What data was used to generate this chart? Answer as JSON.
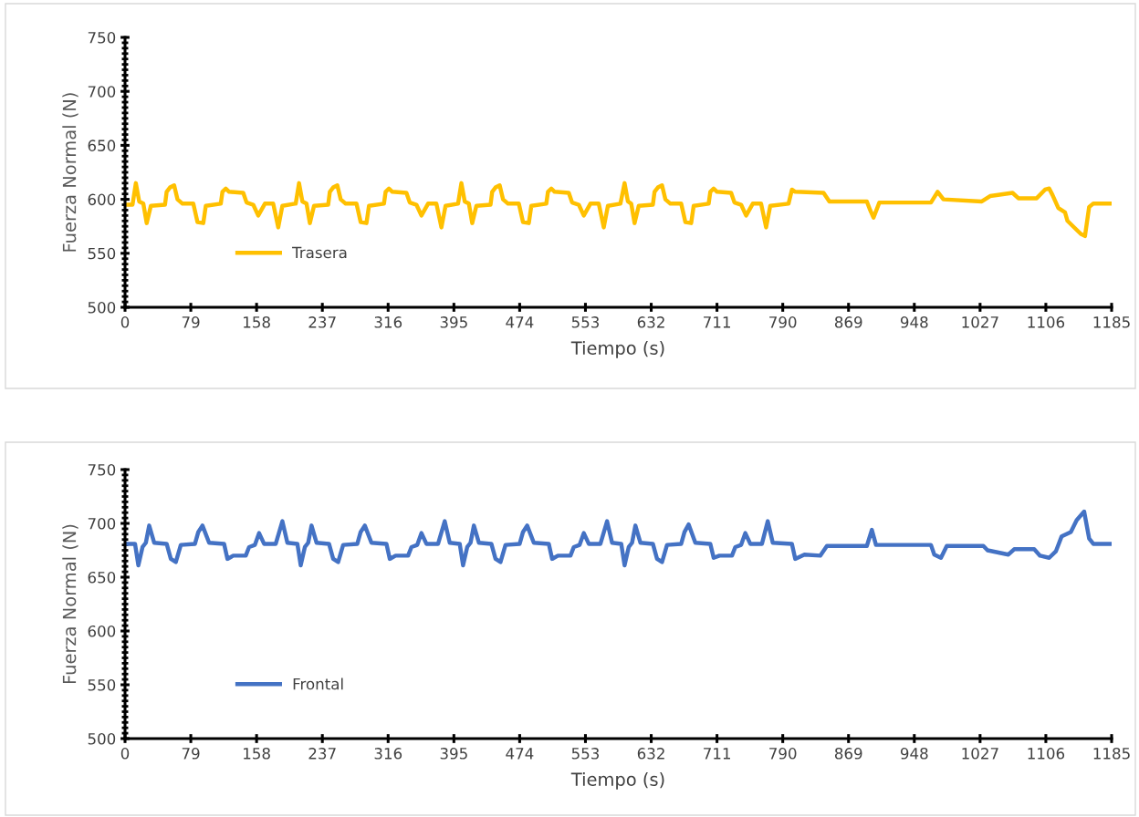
{
  "chart_data": [
    {
      "type": "line",
      "xlabel": "Tiempo (s)",
      "ylabel": "Fuerza Normal (N)",
      "xlim": [
        0,
        1185
      ],
      "xticks": [
        0,
        79,
        158,
        237,
        316,
        395,
        474,
        553,
        632,
        711,
        790,
        869,
        948,
        1027,
        1106,
        1185
      ],
      "ylim": [
        500,
        750
      ],
      "yticks": [
        500,
        550,
        600,
        650,
        700,
        750
      ],
      "grid": false,
      "legend": "bottom left",
      "marker": "none",
      "line_style": "solid",
      "series": [
        {
          "name": "Trasera",
          "color": "#ffc000",
          "x": [
            0,
            9,
            13,
            17,
            22,
            26,
            31,
            48,
            50,
            54,
            59,
            63,
            69,
            82,
            87,
            94,
            97,
            115,
            117,
            121,
            125,
            142,
            146,
            154,
            160,
            168,
            178,
            184,
            189,
            204,
            205,
            209,
            213,
            218,
            222,
            227,
            244,
            246,
            250,
            255,
            259,
            265,
            278,
            283,
            290,
            293,
            311,
            313,
            317,
            321,
            338,
            342,
            350,
            356,
            364,
            374,
            380,
            385,
            400,
            404,
            408,
            413,
            417,
            422,
            439,
            441,
            445,
            450,
            454,
            460,
            473,
            478,
            485,
            488,
            506,
            508,
            512,
            516,
            533,
            537,
            545,
            551,
            559,
            569,
            575,
            580,
            595,
            600,
            604,
            608,
            612,
            617,
            634,
            636,
            640,
            645,
            649,
            655,
            668,
            673,
            680,
            683,
            701,
            703,
            707,
            711,
            728,
            732,
            740,
            746,
            754,
            764,
            770,
            775,
            797,
            801,
            805,
            839,
            846,
            891,
            895,
            899,
            906,
            968,
            976,
            983,
            1029,
            1039,
            1066,
            1073,
            1095,
            1105,
            1110,
            1114,
            1121,
            1129,
            1132,
            1148,
            1153,
            1158,
            1163,
            1185
          ],
          "values": [
            595,
            595,
            615,
            598,
            596,
            578,
            594,
            595,
            607,
            611,
            613,
            600,
            596,
            596,
            579,
            578,
            594,
            596,
            607,
            610,
            607,
            606,
            597,
            595,
            585,
            596,
            596,
            574,
            594,
            596,
            596,
            615,
            598,
            596,
            578,
            594,
            595,
            607,
            611,
            613,
            600,
            596,
            596,
            579,
            578,
            594,
            596,
            607,
            610,
            607,
            606,
            597,
            595,
            585,
            596,
            596,
            574,
            594,
            596,
            615,
            598,
            596,
            578,
            594,
            595,
            607,
            611,
            613,
            600,
            596,
            596,
            579,
            578,
            594,
            596,
            607,
            610,
            607,
            606,
            597,
            595,
            585,
            596,
            596,
            574,
            594,
            596,
            615,
            598,
            596,
            578,
            594,
            595,
            607,
            611,
            613,
            600,
            596,
            596,
            579,
            578,
            594,
            596,
            607,
            610,
            607,
            606,
            597,
            595,
            585,
            596,
            596,
            574,
            594,
            596,
            609,
            607,
            606,
            598,
            598,
            590,
            583,
            597,
            597,
            607,
            600,
            598,
            603,
            606,
            601,
            601,
            609,
            610,
            604,
            592,
            588,
            580,
            568,
            566,
            593,
            596,
            596
          ]
        }
      ]
    },
    {
      "type": "line",
      "xlabel": "Tiempo (s)",
      "ylabel": "Fuerza Normal (N)",
      "xlim": [
        0,
        1185
      ],
      "xticks": [
        0,
        79,
        158,
        237,
        316,
        395,
        474,
        553,
        632,
        711,
        790,
        869,
        948,
        1027,
        1106,
        1185
      ],
      "ylim": [
        500,
        750
      ],
      "yticks": [
        500,
        550,
        600,
        650,
        700,
        750
      ],
      "grid": false,
      "legend": "bottom left",
      "marker": "none",
      "line_style": "solid",
      "series": [
        {
          "name": "Frontal",
          "color": "#4472c4",
          "x": [
            0,
            12,
            16,
            21,
            25,
            29,
            35,
            50,
            55,
            61,
            67,
            84,
            88,
            93,
            101,
            119,
            123,
            130,
            145,
            149,
            156,
            161,
            167,
            181,
            189,
            195,
            207,
            211,
            216,
            220,
            224,
            230,
            245,
            250,
            256,
            262,
            279,
            283,
            288,
            296,
            314,
            318,
            325,
            340,
            344,
            351,
            356,
            362,
            376,
            384,
            390,
            402,
            406,
            411,
            415,
            419,
            425,
            440,
            445,
            451,
            457,
            474,
            478,
            483,
            491,
            509,
            513,
            520,
            535,
            539,
            546,
            551,
            557,
            571,
            579,
            585,
            596,
            600,
            605,
            609,
            613,
            619,
            634,
            639,
            645,
            651,
            668,
            672,
            677,
            685,
            703,
            707,
            714,
            729,
            733,
            740,
            745,
            751,
            765,
            772,
            778,
            801,
            805,
            816,
            835,
            843,
            891,
            897,
            902,
            968,
            972,
            980,
            987,
            1031,
            1036,
            1061,
            1068,
            1092,
            1099,
            1110,
            1118,
            1125,
            1136,
            1143,
            1152,
            1158,
            1163,
            1185
          ],
          "values": [
            681,
            681,
            661,
            678,
            682,
            698,
            682,
            681,
            667,
            664,
            680,
            681,
            692,
            698,
            682,
            681,
            667,
            670,
            670,
            678,
            680,
            691,
            681,
            681,
            702,
            682,
            681,
            661,
            678,
            682,
            698,
            682,
            681,
            667,
            664,
            680,
            681,
            692,
            698,
            682,
            681,
            667,
            670,
            670,
            678,
            680,
            691,
            681,
            681,
            702,
            682,
            681,
            661,
            678,
            682,
            698,
            682,
            681,
            667,
            664,
            680,
            681,
            692,
            698,
            682,
            681,
            667,
            670,
            670,
            678,
            680,
            691,
            681,
            681,
            702,
            682,
            681,
            661,
            678,
            682,
            698,
            682,
            681,
            667,
            664,
            680,
            681,
            692,
            699,
            682,
            681,
            668,
            670,
            670,
            678,
            680,
            691,
            681,
            681,
            702,
            682,
            681,
            667,
            671,
            670,
            679,
            679,
            694,
            680,
            680,
            671,
            668,
            679,
            679,
            675,
            671,
            676,
            676,
            670,
            668,
            674,
            688,
            692,
            703,
            711,
            686,
            681,
            681
          ]
        }
      ]
    }
  ]
}
